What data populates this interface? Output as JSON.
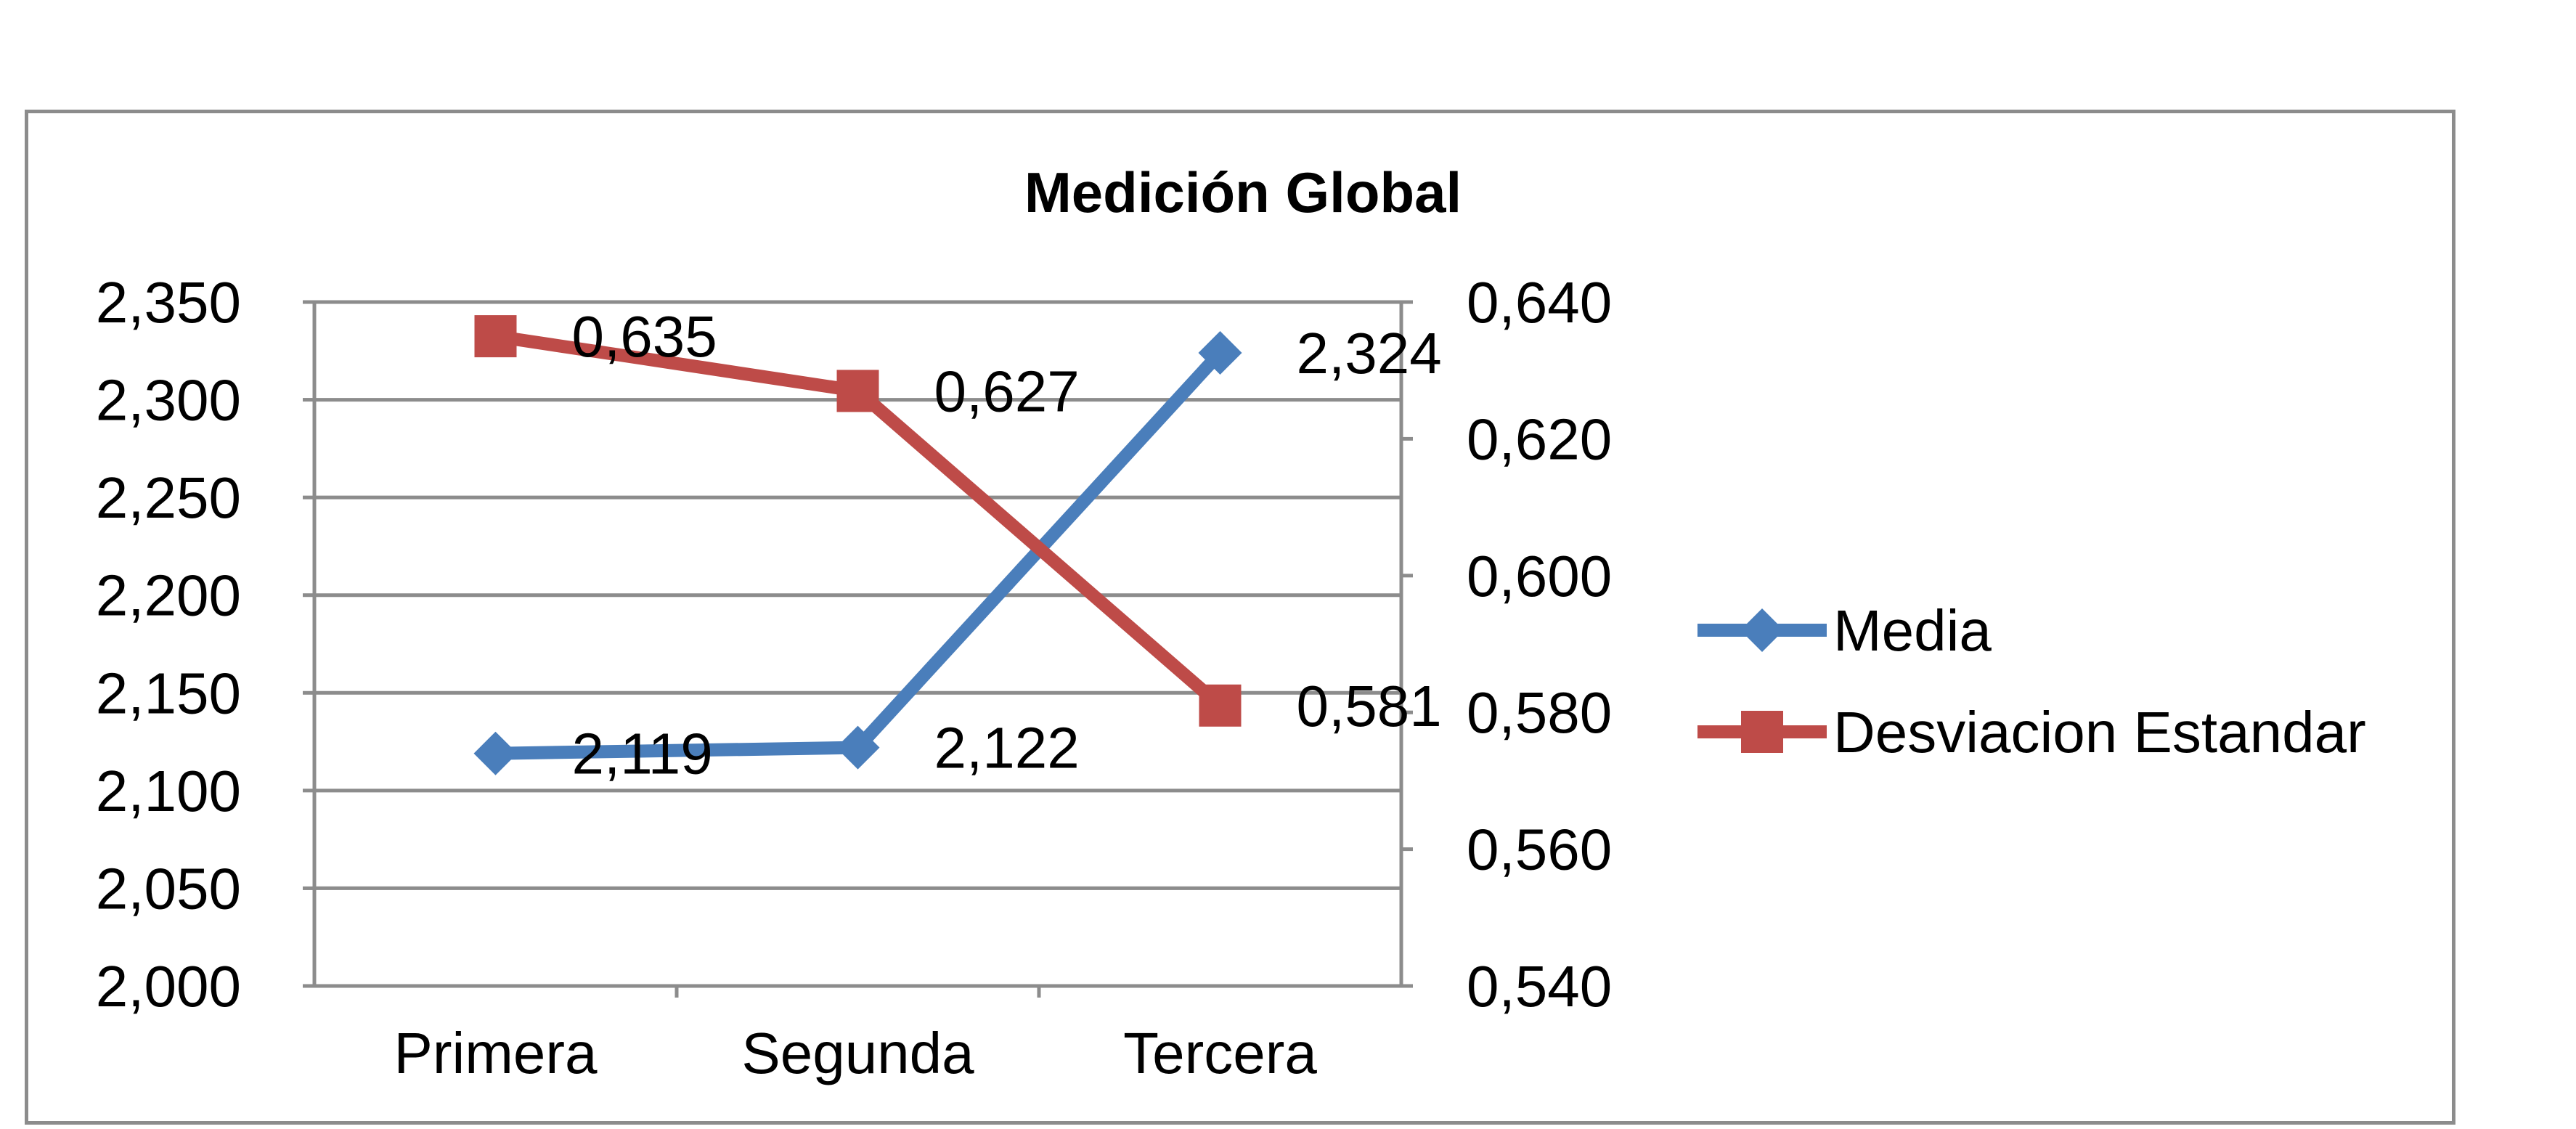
{
  "chart_data": {
    "type": "line",
    "title": "Medición Global",
    "categories": [
      "Primera",
      "Segunda",
      "Tercera"
    ],
    "series": [
      {
        "name": "Media",
        "axis": "left",
        "values": [
          2.119,
          2.122,
          2.324
        ],
        "labels": [
          "2,119",
          "2,122",
          "2,324"
        ],
        "color": "#4a7ebb",
        "marker": "diamond"
      },
      {
        "name": "Desviacion Estandar",
        "axis": "right",
        "values": [
          0.635,
          0.627,
          0.581
        ],
        "labels": [
          "0,635",
          "0,627",
          "0,581"
        ],
        "color": "#be4b48",
        "marker": "square"
      }
    ],
    "y_left": {
      "ylim": [
        2.0,
        2.35
      ],
      "ticks": [
        "2,000",
        "2,050",
        "2,100",
        "2,150",
        "2,200",
        "2,250",
        "2,300",
        "2,350"
      ]
    },
    "y_right": {
      "ylim": [
        0.54,
        0.64
      ],
      "ticks": [
        "0,540",
        "0,560",
        "0,580",
        "0,600",
        "0,620",
        "0,640"
      ]
    },
    "grid": true,
    "legend_position": "right"
  }
}
